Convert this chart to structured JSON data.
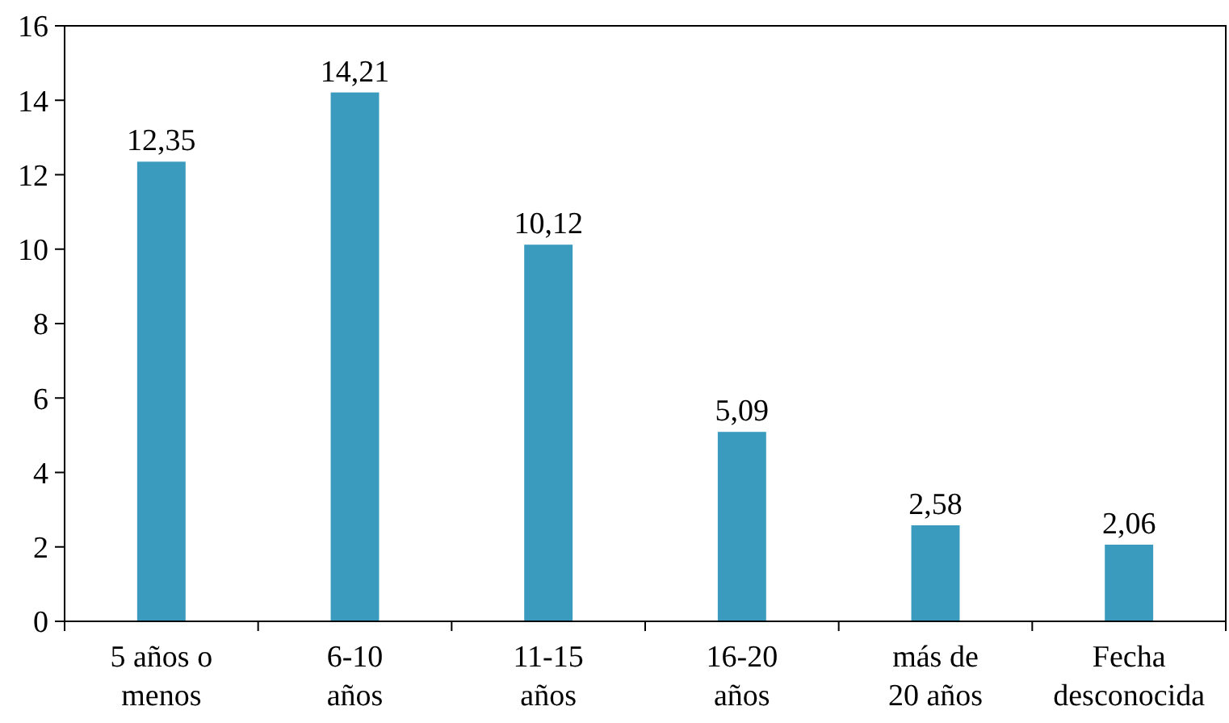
{
  "chart_data": {
    "type": "bar",
    "categories": [
      "5 años o\nmenos",
      "6-10\naños",
      "11-15\naños",
      "16-20\naños",
      "más de\n20 años",
      "Fecha\ndesconocida"
    ],
    "values": [
      12.35,
      14.21,
      10.12,
      5.09,
      2.58,
      2.06
    ],
    "value_labels": [
      "12,35",
      "14,21",
      "10,12",
      "5,09",
      "2,58",
      "2,06"
    ],
    "color": "#3a9bbf",
    "ylim": [
      0,
      16
    ],
    "yticks": [
      0,
      2,
      4,
      6,
      8,
      10,
      12,
      14,
      16
    ],
    "grid": false
  }
}
